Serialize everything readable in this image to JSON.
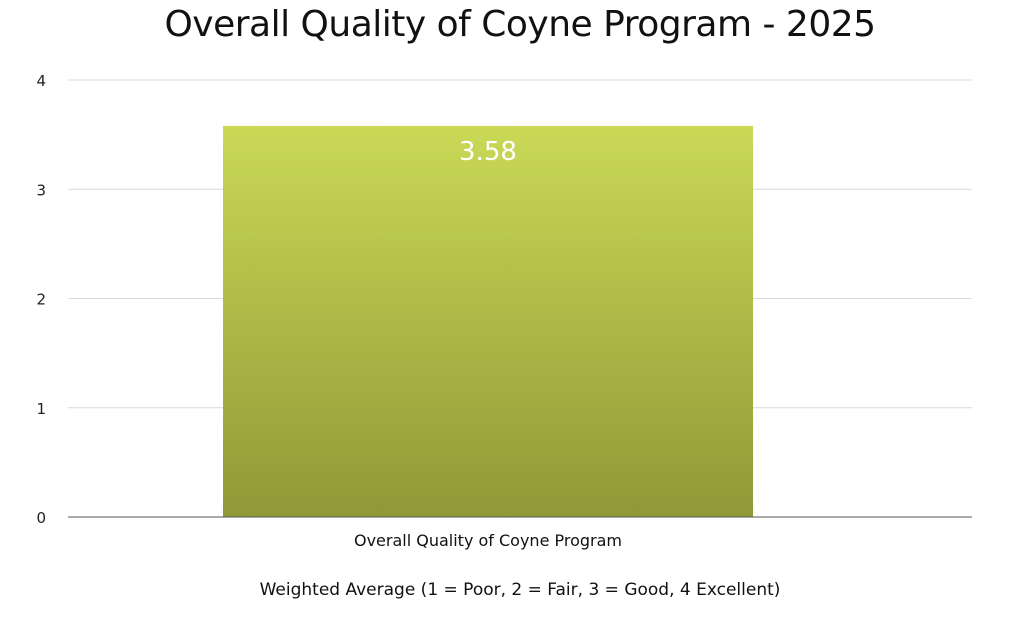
{
  "chart_data": {
    "type": "bar",
    "title": "Overall Quality of Coyne Program - 2025",
    "categories": [
      "Overall Quality of Coyne Program"
    ],
    "values": [
      3.58
    ],
    "data_labels": [
      "3.58"
    ],
    "xlabel": "Weighted Average (1 = Poor, 2 = Fair, 3 = Good, 4 Excellent)",
    "ylabel": "",
    "ylim": [
      0,
      4
    ],
    "yticks": [
      "0",
      "1",
      "2",
      "3",
      "4"
    ],
    "grid": true,
    "legend": "none",
    "colors": {
      "bar_top": "#c9d956",
      "bar_bottom": "#8f9937",
      "grid": "#d9d9d9",
      "axis": "#555555"
    }
  }
}
